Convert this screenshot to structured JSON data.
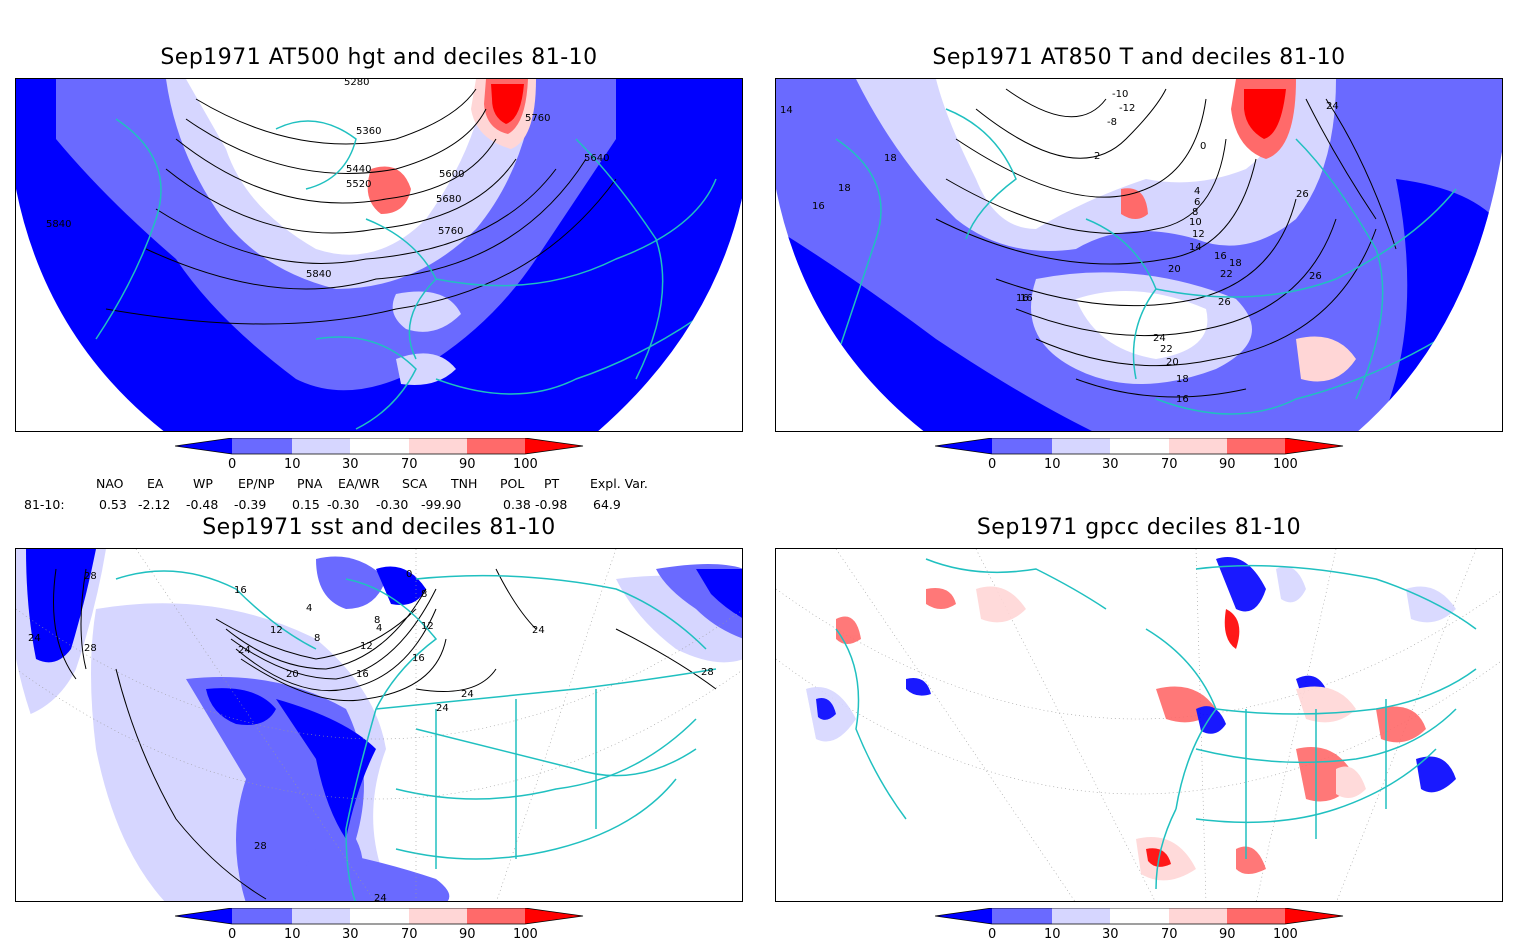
{
  "panels": [
    {
      "id": "p1",
      "title": "Sep1971 AT500 hgt and deciles 81-10",
      "contour_labels": [
        "5280",
        "5360",
        "5440",
        "5520",
        "5600",
        "5680",
        "5760",
        "5840",
        "5640",
        "5760",
        "5840"
      ]
    },
    {
      "id": "p2",
      "title": "Sep1971 AT850 T and deciles 81-10",
      "contour_labels": [
        "-10",
        "-12",
        "-8",
        "2",
        "0",
        "4",
        "6",
        "8",
        "10",
        "12",
        "14",
        "16",
        "18",
        "16",
        "20",
        "22",
        "24",
        "26",
        "20",
        "22",
        "24",
        "26",
        "26",
        "16",
        "16",
        "18",
        "14",
        "18",
        "16",
        "18"
      ]
    },
    {
      "id": "p3",
      "title": "Sep1971 sst and deciles 81-10",
      "contour_labels": [
        "28",
        "24",
        "28",
        "16",
        "12",
        "24",
        "20",
        "16",
        "12",
        "8",
        "4",
        "0",
        "8",
        "4",
        "12",
        "16",
        "8",
        "24",
        "24",
        "28",
        "24",
        "28",
        "24"
      ]
    },
    {
      "id": "p4",
      "title": "Sep1971 gpcc deciles 81-10",
      "contour_labels": []
    }
  ],
  "colorbar": {
    "ticks": [
      "0",
      "10",
      "30",
      "70",
      "90",
      "100"
    ],
    "colors": [
      "#0000ff",
      "#6a6aff",
      "#d6d6ff",
      "#ffffff",
      "#ffd6d6",
      "#ff6a6a",
      "#ff0000"
    ]
  },
  "indices": {
    "row_label": "81-10:",
    "headers": [
      "NAO",
      "EA",
      "WP",
      "EP/NP",
      "PNA",
      "EA/WR",
      "SCA",
      "TNH",
      "POL",
      "PT",
      "Expl. Var."
    ],
    "values": [
      "0.53",
      "-2.12",
      "-0.48",
      "-0.39",
      "0.15",
      "-0.30",
      "-0.30",
      "-99.90",
      "0.38",
      "-0.98",
      "64.9"
    ]
  }
}
